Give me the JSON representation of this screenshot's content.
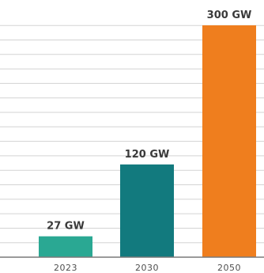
{
  "chart_data": {
    "type": "bar",
    "categories": [
      "2023",
      "2030",
      "2050"
    ],
    "values": [
      27,
      120,
      300
    ],
    "data_labels": [
      "27 GW",
      "120 GW",
      "300 GW"
    ],
    "colors": [
      "#2aa893",
      "#127a7e",
      "#ef7e1e"
    ],
    "grid": true,
    "grid_color": "#d3d3d3",
    "ylim": [
      0,
      300
    ],
    "title": "",
    "xlabel": "",
    "ylabel": ""
  }
}
